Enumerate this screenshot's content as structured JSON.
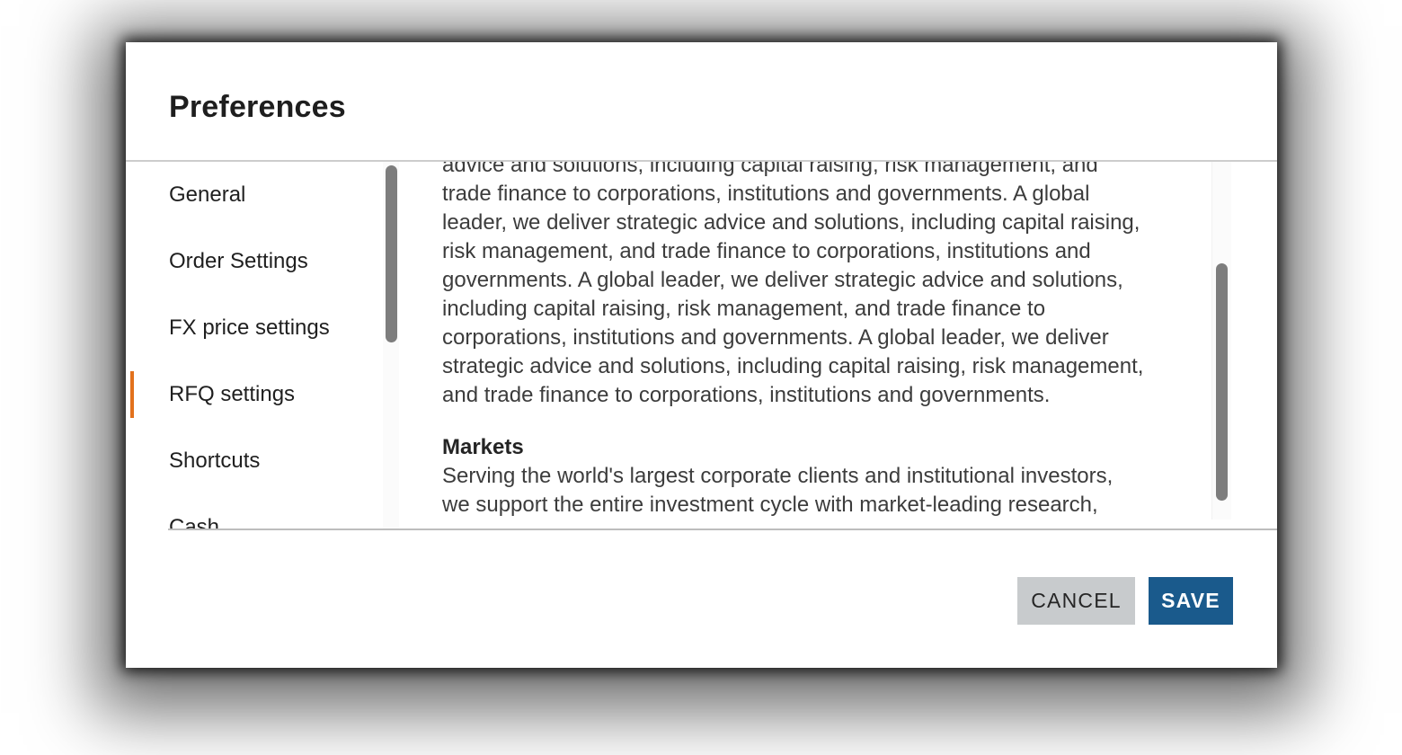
{
  "dialog": {
    "title": "Preferences",
    "sidebar": {
      "items": [
        {
          "label": "General",
          "active": false
        },
        {
          "label": "Order Settings",
          "active": false
        },
        {
          "label": "FX price settings",
          "active": false
        },
        {
          "label": "RFQ settings",
          "active": true
        },
        {
          "label": "Shortcuts",
          "active": false
        },
        {
          "label": "Cash",
          "active": false
        }
      ]
    },
    "content": {
      "paragraph": "advice and solutions, including capital raising, risk management, and trade finance to corporations, institutions and governments. A global leader, we deliver strategic advice and solutions, including capital raising, risk management, and trade finance to corporations, institutions and governments. A global leader, we deliver strategic advice and solutions, including capital raising, risk management, and trade finance to corporations, institutions and governments. A global leader, we deliver strategic advice and solutions, including capital raising, risk management, and trade finance to corporations, institutions and governments.",
      "markets": {
        "heading": "Markets",
        "body_line": "Serving the world's largest corporate clients and institutional investors,",
        "body_line_clipped": "we support the entire investment cycle with market-leading research,"
      }
    },
    "footer": {
      "cancel_label": "CANCEL",
      "save_label": "SAVE"
    }
  },
  "colors": {
    "accent_orange": "#e2711d",
    "save_blue": "#1a5a8c",
    "cancel_gray": "#c8cbcd"
  }
}
